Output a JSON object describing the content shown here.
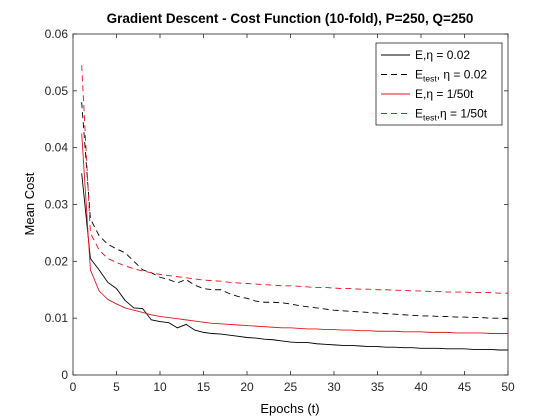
{
  "chart_data": {
    "type": "line",
    "title": "Gradient Descent - Cost Function (10-fold), P=250, Q=250",
    "xlabel": "Epochs (t)",
    "ylabel": "Mean Cost",
    "xlim": [
      0,
      50
    ],
    "ylim": [
      0,
      0.06
    ],
    "xticks": [
      0,
      5,
      10,
      15,
      20,
      25,
      30,
      35,
      40,
      45,
      50
    ],
    "yticks": [
      0,
      0.01,
      0.02,
      0.03,
      0.04,
      0.05,
      0.06
    ],
    "xtick_labels": [
      "0",
      "5",
      "10",
      "15",
      "20",
      "25",
      "30",
      "35",
      "40",
      "45",
      "50"
    ],
    "ytick_labels": [
      "0",
      "0.01",
      "0.02",
      "0.03",
      "0.04",
      "0.05",
      "0.06"
    ],
    "grid": false,
    "legend_position": "top-right",
    "x": [
      1,
      2,
      3,
      4,
      5,
      6,
      7,
      8,
      9,
      10,
      11,
      12,
      13,
      14,
      15,
      16,
      17,
      18,
      19,
      20,
      21,
      22,
      23,
      24,
      25,
      26,
      27,
      28,
      29,
      30,
      31,
      32,
      33,
      34,
      35,
      36,
      37,
      38,
      39,
      40,
      41,
      42,
      43,
      44,
      45,
      46,
      47,
      48,
      49,
      50
    ],
    "series": [
      {
        "legend_main": "E,",
        "legend_sub": "",
        "legend_eta": "η = 0.02",
        "color": "#000000",
        "dash": "solid",
        "values": [
          0.0355,
          0.0205,
          0.0185,
          0.0163,
          0.0152,
          0.0131,
          0.0118,
          0.0117,
          0.0097,
          0.0094,
          0.0092,
          0.0083,
          0.0089,
          0.0079,
          0.0075,
          0.0073,
          0.0072,
          0.007,
          0.0068,
          0.0066,
          0.0065,
          0.0063,
          0.0062,
          0.006,
          0.0058,
          0.0057,
          0.0057,
          0.0055,
          0.0054,
          0.0053,
          0.0052,
          0.0052,
          0.0051,
          0.005,
          0.005,
          0.0049,
          0.0049,
          0.0048,
          0.0048,
          0.0047,
          0.0047,
          0.0047,
          0.0046,
          0.0046,
          0.0046,
          0.0045,
          0.0045,
          0.0045,
          0.0044,
          0.0044
        ]
      },
      {
        "legend_main": "E",
        "legend_sub": "test",
        "legend_eta": ", η = 0.02",
        "color": "#000000",
        "dash": "dashed",
        "values": [
          0.048,
          0.0275,
          0.0245,
          0.023,
          0.0222,
          0.0215,
          0.02,
          0.0185,
          0.018,
          0.0172,
          0.0168,
          0.0162,
          0.0168,
          0.0158,
          0.0152,
          0.015,
          0.015,
          0.0143,
          0.0138,
          0.0135,
          0.013,
          0.0128,
          0.0128,
          0.0127,
          0.0125,
          0.0122,
          0.012,
          0.0118,
          0.0116,
          0.0114,
          0.0113,
          0.0112,
          0.0111,
          0.011,
          0.0109,
          0.0108,
          0.0107,
          0.0106,
          0.0105,
          0.0104,
          0.0104,
          0.0103,
          0.0103,
          0.0102,
          0.0102,
          0.0101,
          0.0101,
          0.01,
          0.01,
          0.0099
        ]
      },
      {
        "legend_main": "E,",
        "legend_sub": "",
        "legend_eta": "η = 1/50t",
        "color": "#e8141b",
        "dash": "solid",
        "values": [
          0.0425,
          0.0185,
          0.0148,
          0.0133,
          0.0125,
          0.0118,
          0.0114,
          0.011,
          0.0106,
          0.0103,
          0.0101,
          0.0099,
          0.0097,
          0.0095,
          0.0093,
          0.0091,
          0.009,
          0.0089,
          0.0088,
          0.0087,
          0.0086,
          0.0085,
          0.0084,
          0.0083,
          0.0083,
          0.0082,
          0.0081,
          0.0081,
          0.008,
          0.008,
          0.0079,
          0.0079,
          0.0078,
          0.0078,
          0.0077,
          0.0077,
          0.0077,
          0.0076,
          0.0076,
          0.0076,
          0.0075,
          0.0075,
          0.0075,
          0.0074,
          0.0074,
          0.0074,
          0.0074,
          0.0073,
          0.0073,
          0.0073
        ]
      },
      {
        "legend_main": "E",
        "legend_sub": "test",
        "legend_eta": ",η = 1/50t",
        "color": "#e8141b",
        "dash": "dashed",
        "values": [
          0.0545,
          0.025,
          0.022,
          0.0205,
          0.0198,
          0.0192,
          0.0187,
          0.0183,
          0.018,
          0.0177,
          0.0175,
          0.0173,
          0.0171,
          0.0169,
          0.0167,
          0.0166,
          0.0165,
          0.0163,
          0.0162,
          0.0161,
          0.016,
          0.0159,
          0.0158,
          0.0157,
          0.0157,
          0.0156,
          0.0155,
          0.0154,
          0.0154,
          0.0153,
          0.0152,
          0.0152,
          0.0151,
          0.0151,
          0.015,
          0.015,
          0.0149,
          0.0149,
          0.0148,
          0.0148,
          0.0147,
          0.0147,
          0.0146,
          0.0146,
          0.0146,
          0.0145,
          0.0145,
          0.0145,
          0.0144,
          0.0144
        ]
      }
    ]
  }
}
